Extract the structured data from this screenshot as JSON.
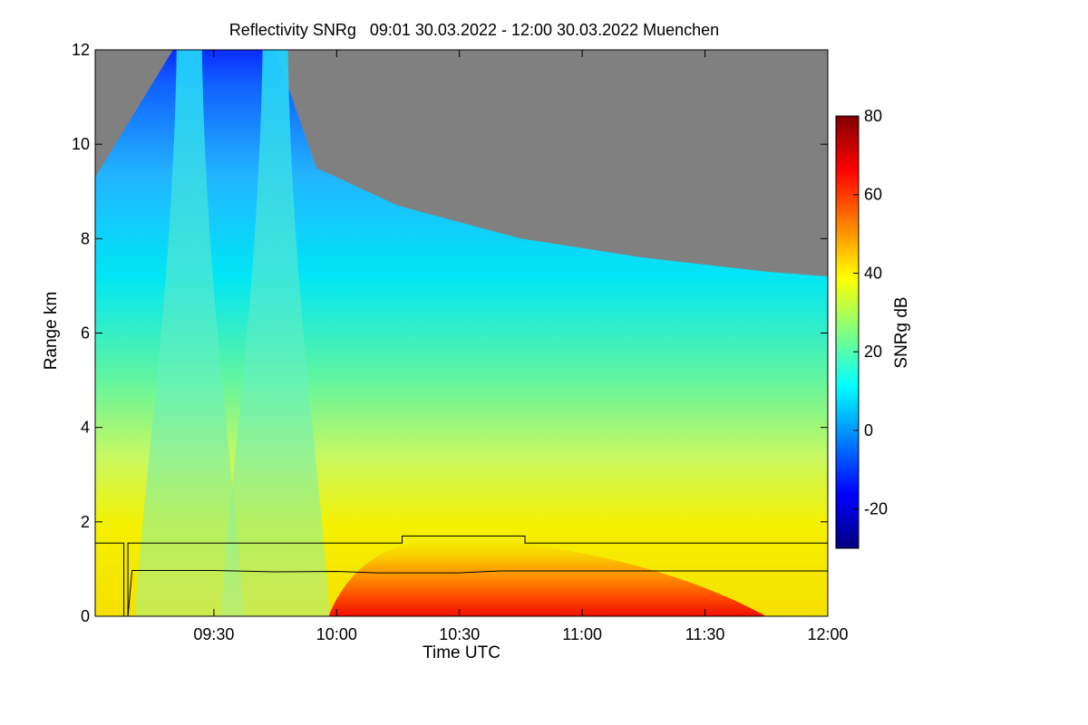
{
  "chart_data": {
    "type": "heatmap",
    "title": "Reflectivity SNRg   09:01 30.03.2022 - 12:00 30.03.2022 Muenchen",
    "xlabel": "Time UTC",
    "ylabel": "Range km",
    "colorbar_label": "SNRg dB",
    "xlim": [
      "09:01",
      "12:00"
    ],
    "ylim": [
      0,
      12
    ],
    "x_ticks": [
      "09:30",
      "10:00",
      "10:30",
      "11:00",
      "11:30",
      "12:00"
    ],
    "y_ticks": [
      "0",
      "2",
      "4",
      "6",
      "8",
      "10",
      "12"
    ],
    "colorbar_range": [
      -30,
      80
    ],
    "colorbar_ticks": [
      "-20",
      "0",
      "20",
      "40",
      "60",
      "80"
    ],
    "colormap": [
      "#000080",
      "#0000ff",
      "#0080ff",
      "#00ffff",
      "#80ff80",
      "#ffff00",
      "#ff8000",
      "#ff0000",
      "#800000"
    ],
    "no_signal_color": "#808080",
    "upper_signal_edge_km": [
      {
        "t": "09:01",
        "km": 9.3
      },
      {
        "t": "09:20",
        "km": 12.0
      },
      {
        "t": "09:30",
        "km": 12.0
      },
      {
        "t": "09:45",
        "km": 12.0
      },
      {
        "t": "09:55",
        "km": 9.5
      },
      {
        "t": "10:15",
        "km": 8.7
      },
      {
        "t": "10:45",
        "km": 8.0
      },
      {
        "t": "11:15",
        "km": 7.6
      },
      {
        "t": "11:45",
        "km": 7.3
      },
      {
        "t": "12:00",
        "km": 7.2
      }
    ],
    "overlay_lines": [
      {
        "points": [
          {
            "t": "09:01",
            "km": 1.55
          },
          {
            "t": "09:08",
            "km": 1.55
          },
          {
            "t": "09:08",
            "km": 0.0
          },
          {
            "t": "09:09",
            "km": 0.0
          },
          {
            "t": "09:09",
            "km": 1.55
          },
          {
            "t": "10:16",
            "km": 1.55
          },
          {
            "t": "10:16",
            "km": 1.7
          },
          {
            "t": "10:46",
            "km": 1.7
          },
          {
            "t": "10:46",
            "km": 1.55
          },
          {
            "t": "12:00",
            "km": 1.55
          }
        ]
      },
      {
        "points": [
          {
            "t": "09:09",
            "km": 0.0
          },
          {
            "t": "09:10",
            "km": 0.97
          },
          {
            "t": "09:30",
            "km": 0.97
          },
          {
            "t": "09:45",
            "km": 0.94
          },
          {
            "t": "10:00",
            "km": 0.95
          },
          {
            "t": "10:10",
            "km": 0.92
          },
          {
            "t": "10:30",
            "km": 0.92
          },
          {
            "t": "10:40",
            "km": 0.96
          },
          {
            "t": "11:00",
            "km": 0.96
          },
          {
            "t": "12:00",
            "km": 0.96
          }
        ]
      }
    ]
  }
}
